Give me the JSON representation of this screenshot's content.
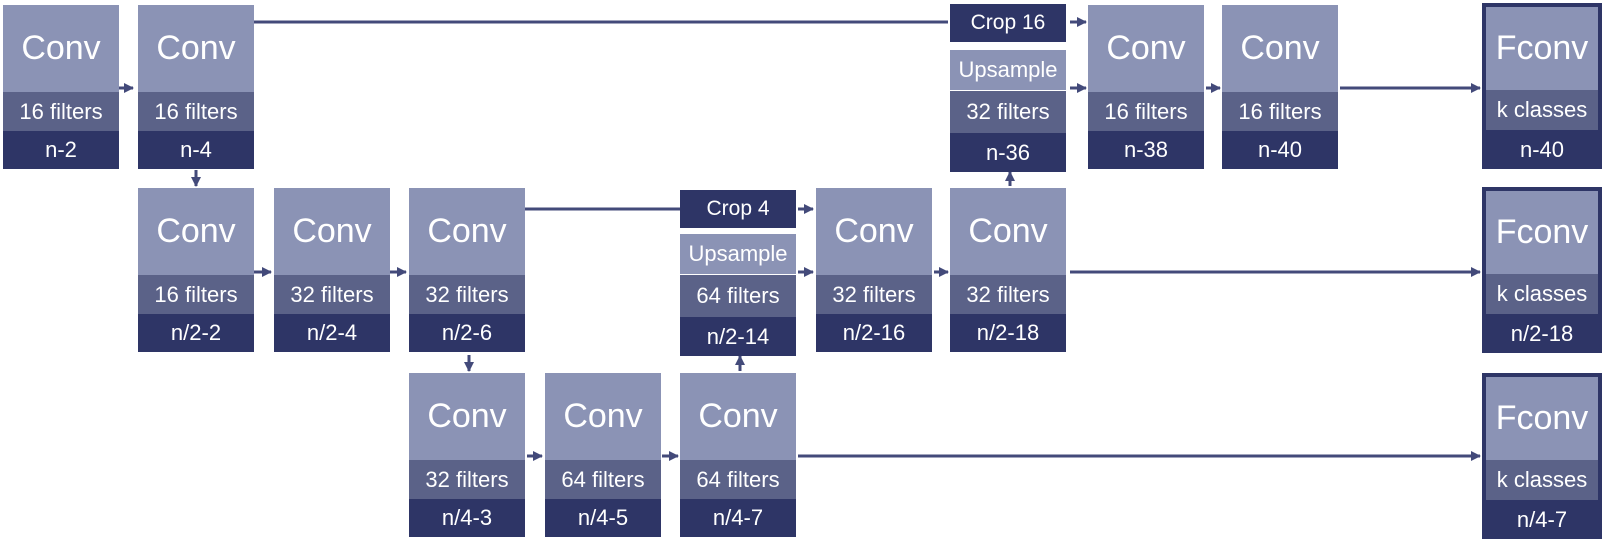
{
  "colors": {
    "title_bg": "#8b93b5",
    "filters_bg": "#5b6288",
    "size_bg": "#2e3566",
    "arrow": "#434a7a"
  },
  "blocks": {
    "r1c1": {
      "title": "Conv",
      "filters": "16 filters",
      "size": "n-2"
    },
    "r1c2": {
      "title": "Conv",
      "filters": "16 filters",
      "size": "n-4"
    },
    "r1up": {
      "title": "Upsample",
      "filters": "32 filters",
      "size": "n-36"
    },
    "r1c3": {
      "title": "Conv",
      "filters": "16 filters",
      "size": "n-38"
    },
    "r1c4": {
      "title": "Conv",
      "filters": "16 filters",
      "size": "n-40"
    },
    "r1f": {
      "title": "Fconv",
      "filters": "k classes",
      "size": "n-40"
    },
    "r2c1": {
      "title": "Conv",
      "filters": "16 filters",
      "size": "n/2-2"
    },
    "r2c2": {
      "title": "Conv",
      "filters": "32 filters",
      "size": "n/2-4"
    },
    "r2c3": {
      "title": "Conv",
      "filters": "32 filters",
      "size": "n/2-6"
    },
    "r2up": {
      "title": "Upsample",
      "filters": "64 filters",
      "size": "n/2-14"
    },
    "r2c4": {
      "title": "Conv",
      "filters": "32 filters",
      "size": "n/2-16"
    },
    "r2c5": {
      "title": "Conv",
      "filters": "32 filters",
      "size": "n/2-18"
    },
    "r2f": {
      "title": "Fconv",
      "filters": "k classes",
      "size": "n/2-18"
    },
    "r3c1": {
      "title": "Conv",
      "filters": "32 filters",
      "size": "n/4-3"
    },
    "r3c2": {
      "title": "Conv",
      "filters": "64 filters",
      "size": "n/4-5"
    },
    "r3c3": {
      "title": "Conv",
      "filters": "64 filters",
      "size": "n/4-7"
    },
    "r3f": {
      "title": "Fconv",
      "filters": "k classes",
      "size": "n/4-7"
    }
  },
  "crops": {
    "crop16": "Crop 16",
    "crop4": "Crop 4"
  }
}
